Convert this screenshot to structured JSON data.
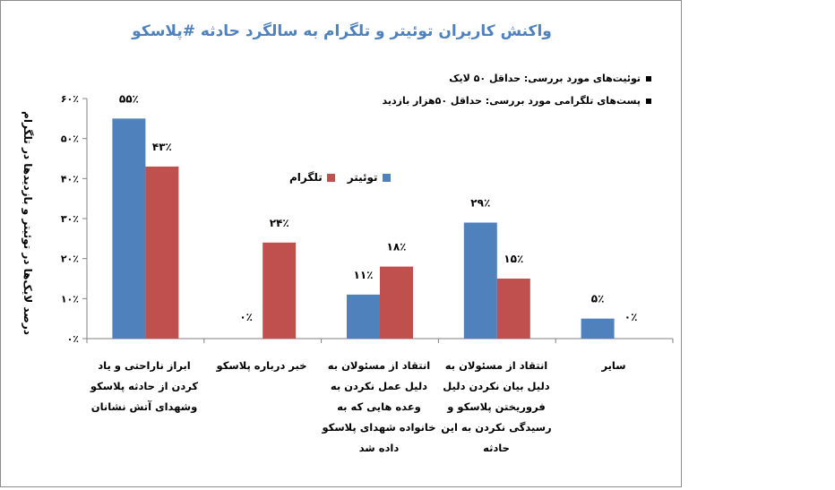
{
  "chart_data": {
    "type": "bar",
    "title": "واکنش کاربران توئیتر و تلگرام به سالگرد حادثه #پلاسکو",
    "ylabel": "درصد لایک‌ها در توئیتر و بازدیدها در تلگرام",
    "ylim": [
      0,
      60
    ],
    "yticks": [
      "۰٪",
      "۱۰٪",
      "۲۰٪",
      "۳۰٪",
      "۴۰٪",
      "۵۰٪",
      "۶۰٪"
    ],
    "categories": [
      "ابراز ناراحتی و یاد کردن از حادثه پلاسکو وشهدای آتش نشانان",
      "خبر درباره پلاسکو",
      "انتقاد از مسئولان به دلیل عمل نکردن به وعده هایی که به خانواده شهدای پلاسکو داده شد",
      "انتقاد از مسئولان به دلیل بیان نکردن دلیل فروریختن پلاسکو و رسیدگی نکردن به این حادثه",
      "سایر"
    ],
    "series": [
      {
        "name": "توئیتر",
        "values": [
          55,
          0,
          11,
          29,
          5
        ],
        "labels": [
          "۵۵٪",
          "",
          "۱۱٪",
          "۲۹٪",
          "۵٪"
        ],
        "color": "#4f81bd"
      },
      {
        "name": "تلگرام",
        "values": [
          43,
          24,
          18,
          15,
          0
        ],
        "labels": [
          "۴۳٪",
          "۲۴٪",
          "۱۸٪",
          "۱۵٪",
          "۰٪"
        ],
        "color": "#c0504d"
      }
    ],
    "zero_label": "۰٪",
    "notes": [
      "توئیت‌های مورد بررسی: حداقل ۵۰ لایک",
      "پست‌های تلگرامی مورد بررسی: حداقل ۵۰هزار بازدید"
    ],
    "legend_position": "center-left",
    "grid": false
  }
}
